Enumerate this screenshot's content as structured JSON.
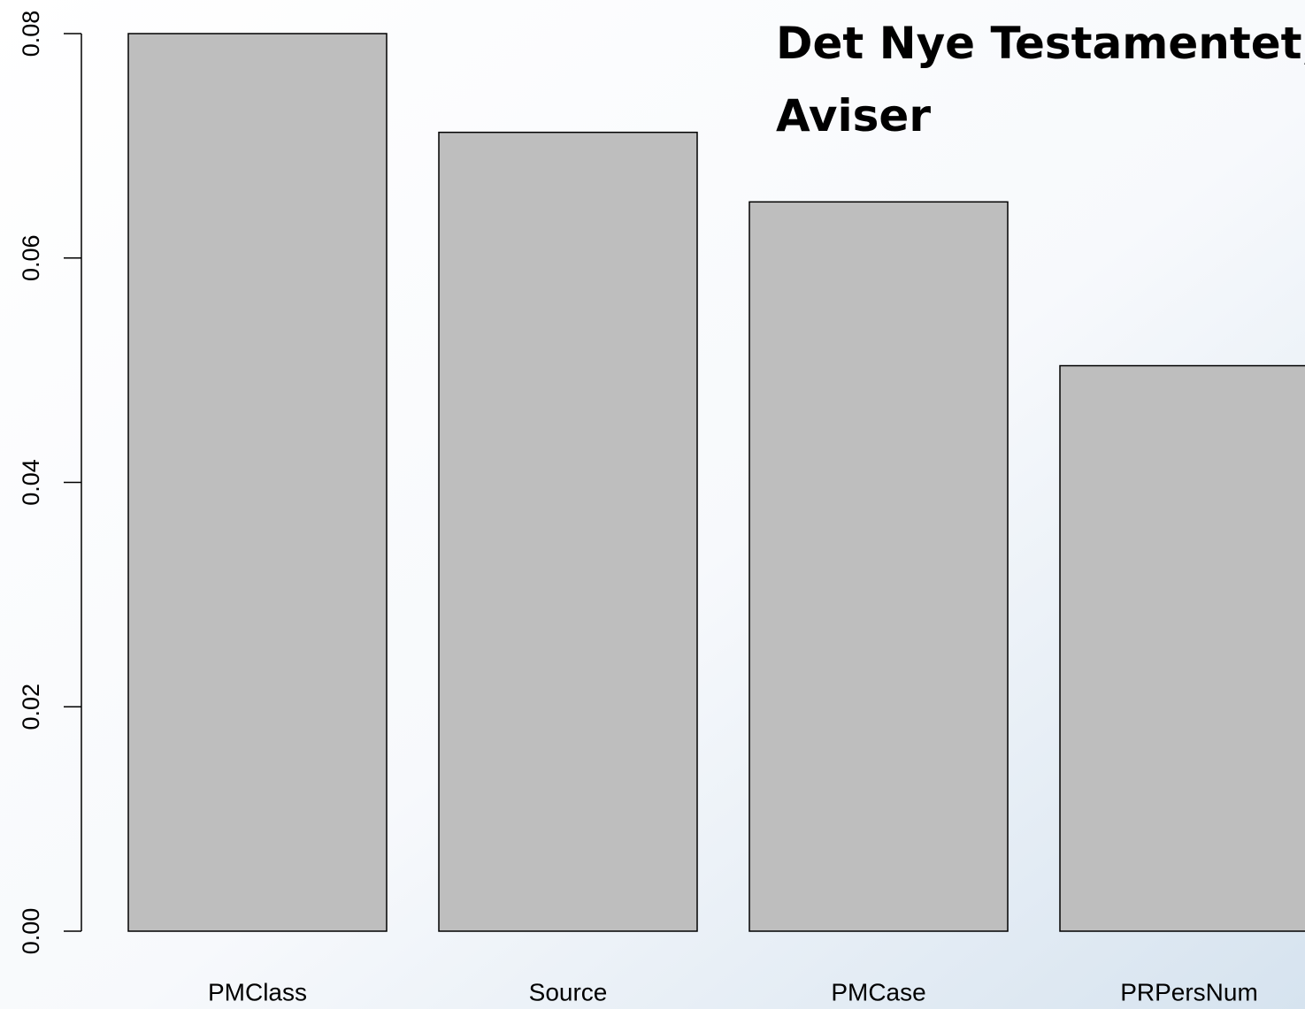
{
  "chart_data": {
    "type": "bar",
    "title_lines": [
      "Det Nye Testamentet,",
      "Aviser"
    ],
    "categories": [
      "PMClass",
      "Source",
      "PMCase",
      "PRPersNum"
    ],
    "values": [
      0.08,
      0.0712,
      0.065,
      0.0504
    ],
    "color": "#bebebe",
    "ylim": [
      0,
      0.08
    ],
    "yticks": [
      {
        "value": 0,
        "label": "0.00"
      },
      {
        "value": 0.02,
        "label": "0.02"
      },
      {
        "value": 0.04,
        "label": "0.04"
      },
      {
        "value": 0.06,
        "label": "0.06"
      },
      {
        "value": 0.08,
        "label": "0.08"
      }
    ]
  }
}
